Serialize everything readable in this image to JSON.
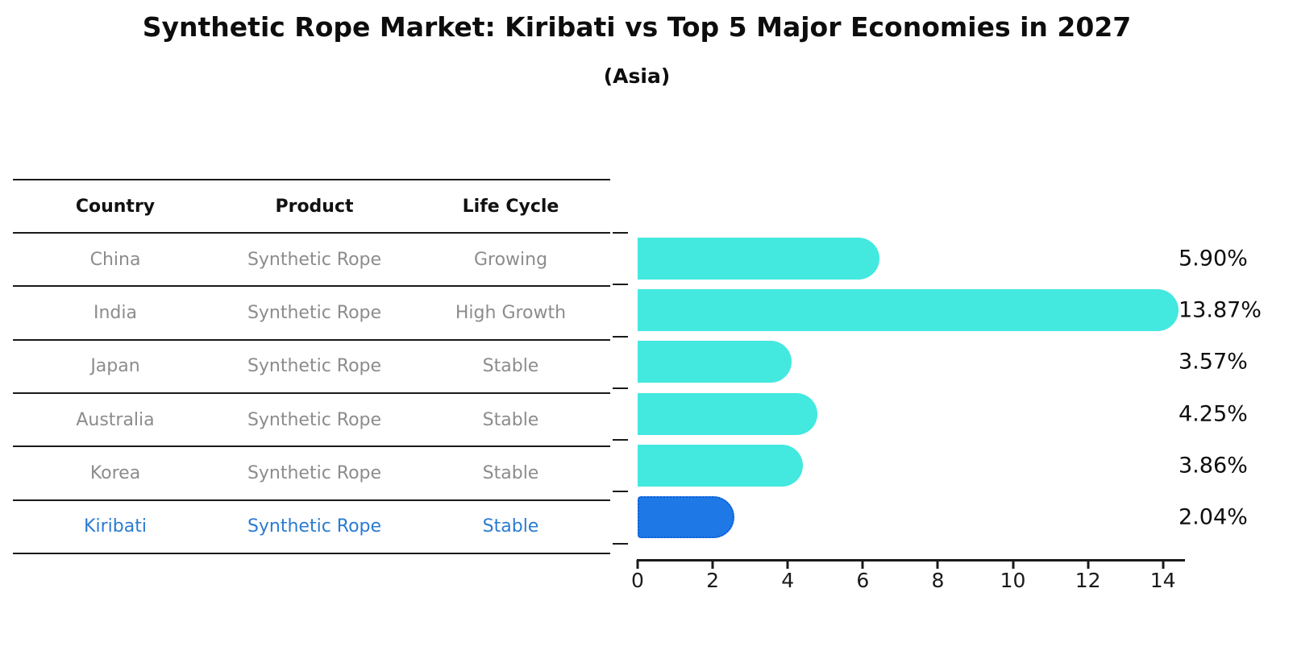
{
  "title": "Synthetic Rope Market: Kiribati vs Top 5 Major Economies in 2027",
  "subtitle": "(Asia)",
  "table": {
    "headers": [
      "Country",
      "Product",
      "Life Cycle"
    ],
    "rows": [
      {
        "country": "China",
        "product": "Synthetic Rope",
        "life_cycle": "Growing",
        "highlighted": false
      },
      {
        "country": "India",
        "product": "Synthetic Rope",
        "life_cycle": "High Growth",
        "highlighted": false
      },
      {
        "country": "Japan",
        "product": "Synthetic Rope",
        "life_cycle": "Stable",
        "highlighted": false
      },
      {
        "country": "Australia",
        "product": "Synthetic Rope",
        "life_cycle": "Stable",
        "highlighted": false
      },
      {
        "country": "Korea",
        "product": "Synthetic Rope",
        "life_cycle": "Stable",
        "highlighted": false
      },
      {
        "country": "Kiribati",
        "product": "Synthetic Rope",
        "life_cycle": "Stable",
        "highlighted": true
      }
    ]
  },
  "chart_data": {
    "type": "bar",
    "orientation": "horizontal",
    "categories": [
      "China",
      "India",
      "Japan",
      "Australia",
      "Korea",
      "Kiribati"
    ],
    "values": [
      5.9,
      13.87,
      3.57,
      4.25,
      3.86,
      2.04
    ],
    "labels": [
      "5.90%",
      "13.87%",
      "3.57%",
      "4.25%",
      "3.86%",
      "2.04%"
    ],
    "x_ticks": [
      0,
      2,
      4,
      6,
      8,
      10,
      12,
      14
    ],
    "xlim": [
      0,
      14.6
    ],
    "grid": false,
    "bar_color": "#43e8df",
    "highlight_color": "#1e78e6",
    "highlight_border_color": "#0e5fd8",
    "highlight_index": 5,
    "highlight_text_color": "#2b7bd1",
    "table_text_color": "#8c8c8c"
  }
}
